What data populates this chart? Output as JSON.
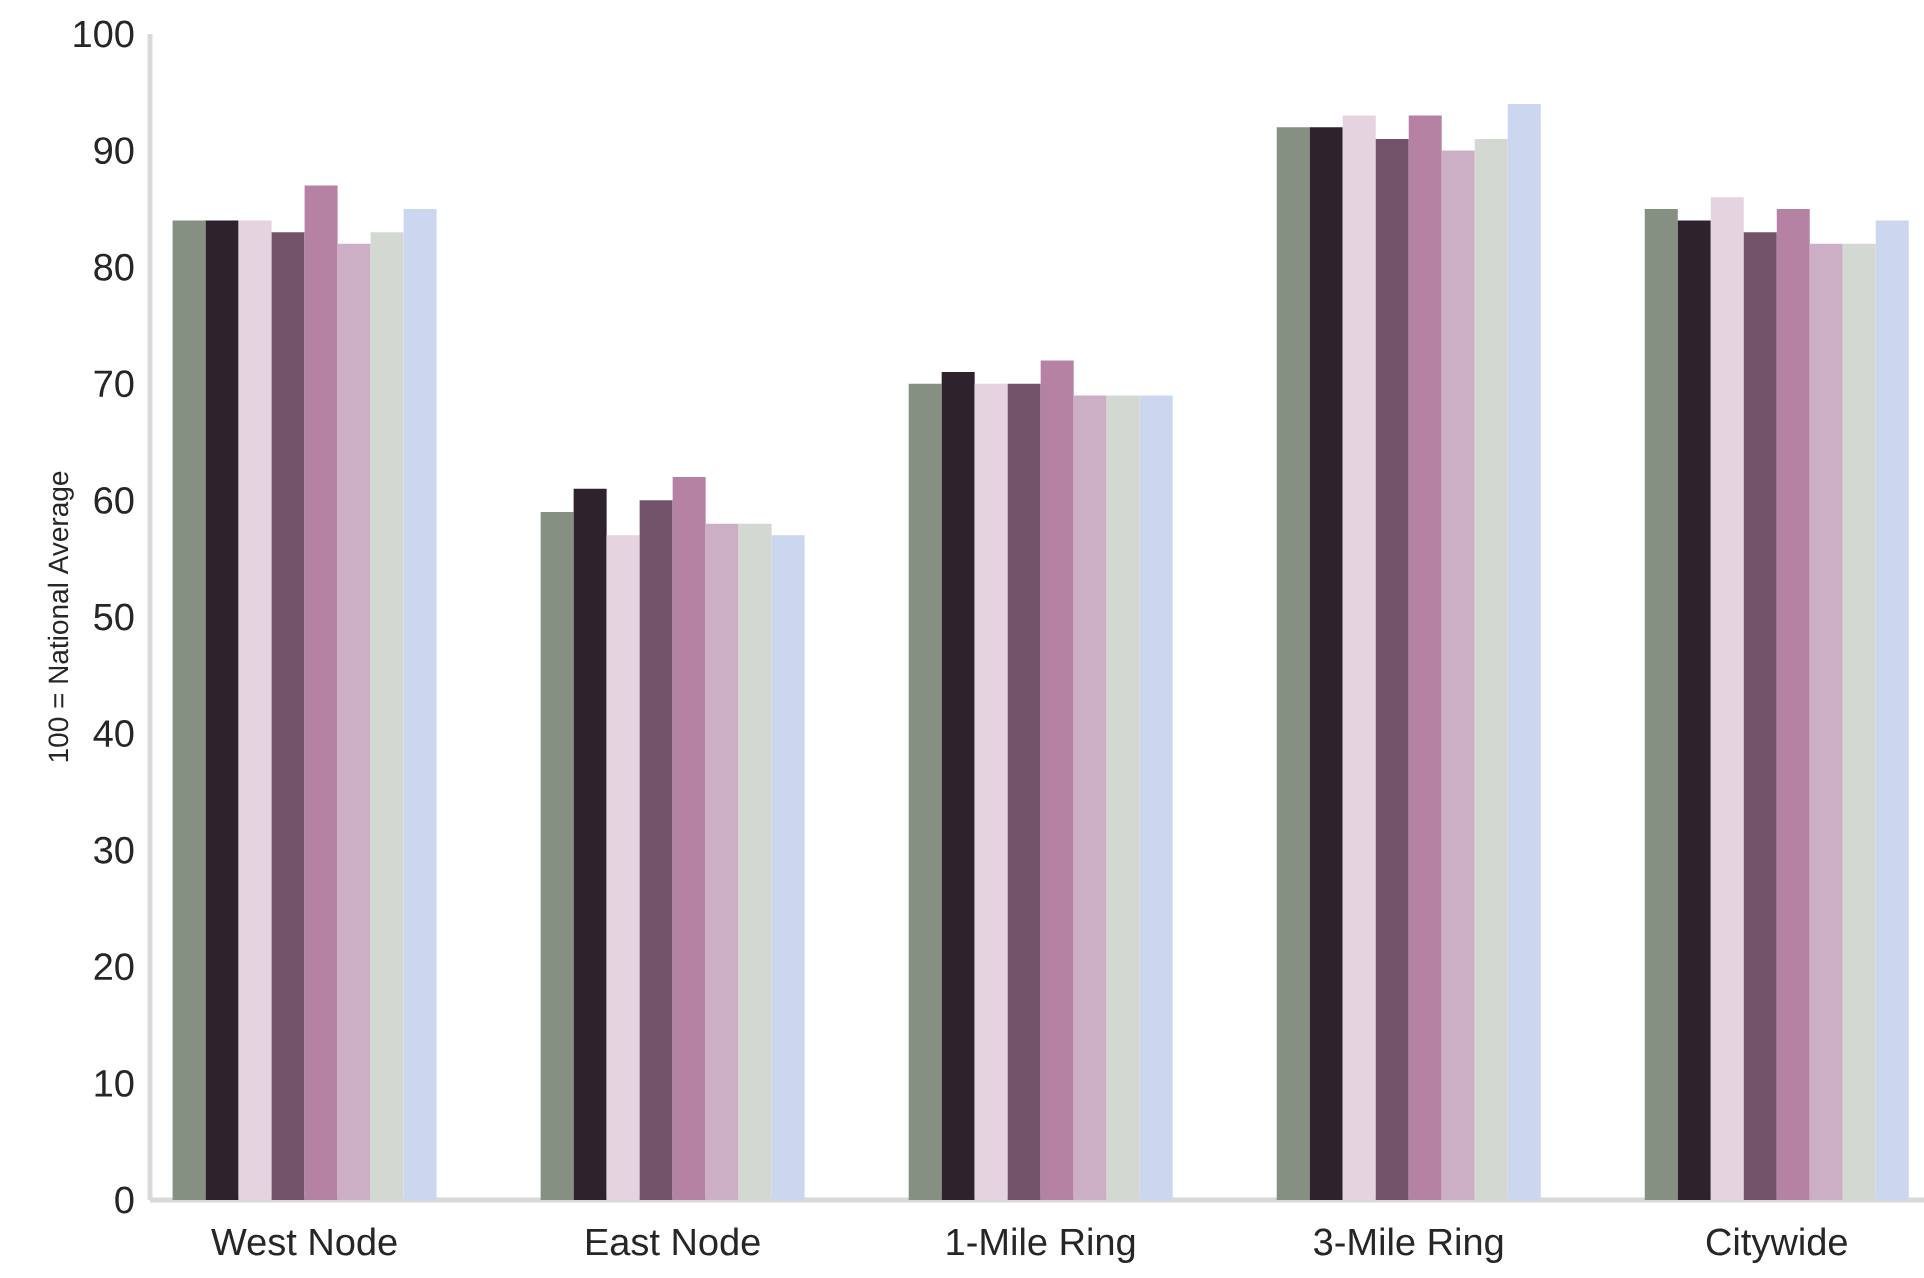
{
  "chart_data": {
    "type": "bar",
    "ylabel": "100 = National Average",
    "categories": [
      "West Node",
      "East Node",
      "1-Mile Ring",
      "3-Mile Ring",
      "Citywide"
    ],
    "ylim": [
      0,
      100
    ],
    "yticks": [
      0,
      10,
      20,
      30,
      40,
      50,
      60,
      70,
      80,
      90,
      100
    ],
    "series": [
      {
        "color": "#858f82",
        "values": [
          84,
          59,
          70,
          92,
          85
        ]
      },
      {
        "color": "#2e222c",
        "values": [
          84,
          61,
          71,
          92,
          84
        ]
      },
      {
        "color": "#e5d3e0",
        "values": [
          84,
          57,
          70,
          93,
          86
        ]
      },
      {
        "color": "#73536a",
        "values": [
          83,
          60,
          70,
          91,
          83
        ]
      },
      {
        "color": "#b582a4",
        "values": [
          87,
          62,
          72,
          93,
          85
        ]
      },
      {
        "color": "#cdafc5",
        "values": [
          82,
          58,
          69,
          90,
          82
        ]
      },
      {
        "color": "#d3d8d2",
        "values": [
          83,
          58,
          69,
          91,
          82
        ]
      },
      {
        "color": "#cbd7ee",
        "values": [
          85,
          57,
          69,
          94,
          84
        ]
      }
    ]
  }
}
